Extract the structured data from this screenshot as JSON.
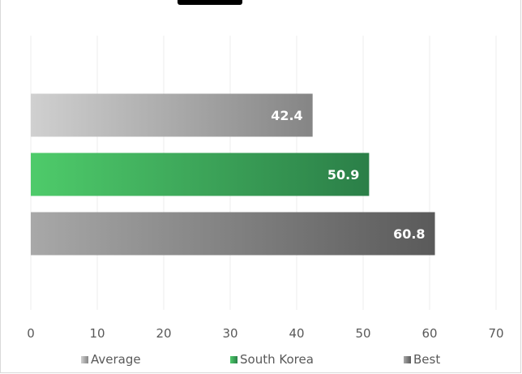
{
  "chart_data": {
    "type": "bar",
    "orientation": "horizontal",
    "title": "",
    "xlabel": "",
    "ylabel": "",
    "xlim": [
      0,
      70
    ],
    "x_ticks": [
      "0",
      "10",
      "20",
      "30",
      "40",
      "50",
      "60",
      "70"
    ],
    "grid": true,
    "legend_position": "bottom",
    "series": [
      {
        "name": "Average",
        "value": 42.4,
        "label": "42.4",
        "color_start": "#d0d0d0",
        "color_end": "#858585"
      },
      {
        "name": "South Korea",
        "value": 50.9,
        "label": "50.9",
        "color_start": "#4ecb6a",
        "color_end": "#2b7f48"
      },
      {
        "name": "Best",
        "value": 60.8,
        "label": "60.8",
        "color_start": "#a8a8a8",
        "color_end": "#5a5a5a"
      }
    ]
  }
}
